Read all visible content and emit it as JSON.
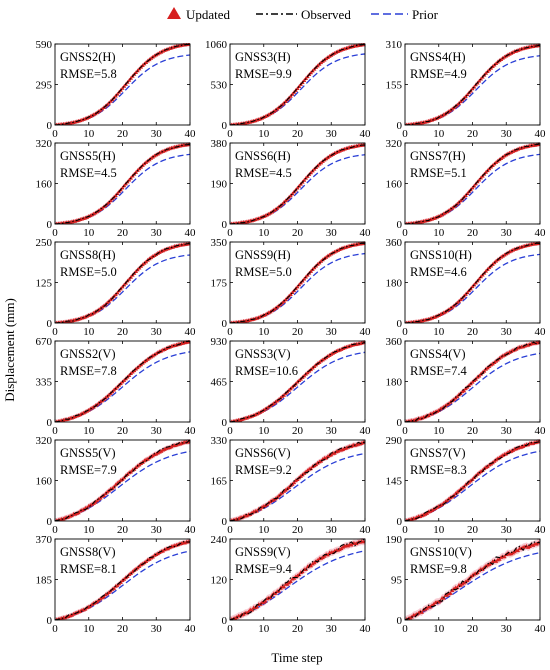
{
  "figure": {
    "ylabel": "Displacement (mm)",
    "xlabel": "Time step"
  },
  "legend": {
    "placement": "top",
    "items": [
      {
        "name": "Updated",
        "marker": "triangle",
        "color": "#d62020"
      },
      {
        "name": "Observed",
        "marker": "dashdot",
        "color": "#000000"
      },
      {
        "name": "Prior",
        "marker": "dashed",
        "color": "#2a3fd6"
      }
    ]
  },
  "colors": {
    "updated": "#d62020",
    "updated_band": "#f4b9c4",
    "observed": "#000000",
    "prior": "#2a3fd6"
  },
  "chart_data": [
    {
      "type": "line",
      "station": "GNSS2(H)",
      "rmse_label": "RMSE=5.8",
      "ylim": [
        0,
        590
      ],
      "yticks": [
        "0",
        "295",
        "590"
      ],
      "xlim": [
        0,
        40
      ],
      "xticks": [
        "0",
        "10",
        "20",
        "30",
        "40"
      ],
      "final_observed": 590,
      "final_prior": 510,
      "noise": 2,
      "sig": {
        "k": 0.19,
        "t0": 21
      }
    },
    {
      "type": "line",
      "station": "GNSS3(H)",
      "rmse_label": "RMSE=9.9",
      "ylim": [
        0,
        1060
      ],
      "yticks": [
        "0",
        "530",
        "1060"
      ],
      "xlim": [
        0,
        40
      ],
      "xticks": [
        "0",
        "10",
        "20",
        "30",
        "40"
      ],
      "final_observed": 1055,
      "final_prior": 930,
      "noise": 4,
      "sig": {
        "k": 0.19,
        "t0": 21
      }
    },
    {
      "type": "line",
      "station": "GNSS4(H)",
      "rmse_label": "RMSE=4.9",
      "ylim": [
        0,
        310
      ],
      "yticks": [
        "0",
        "155",
        "310"
      ],
      "xlim": [
        0,
        40
      ],
      "xticks": [
        "0",
        "10",
        "20",
        "30",
        "40"
      ],
      "final_observed": 305,
      "final_prior": 265,
      "noise": 2,
      "sig": {
        "k": 0.19,
        "t0": 21
      }
    },
    {
      "type": "line",
      "station": "GNSS5(H)",
      "rmse_label": "RMSE=4.5",
      "ylim": [
        0,
        320
      ],
      "yticks": [
        "0",
        "160",
        "320"
      ],
      "xlim": [
        0,
        40
      ],
      "xticks": [
        "0",
        "10",
        "20",
        "30",
        "40"
      ],
      "final_observed": 315,
      "final_prior": 275,
      "noise": 2,
      "sig": {
        "k": 0.19,
        "t0": 21
      }
    },
    {
      "type": "line",
      "station": "GNSS6(H)",
      "rmse_label": "RMSE=4.5",
      "ylim": [
        0,
        380
      ],
      "yticks": [
        "0",
        "190",
        "380"
      ],
      "xlim": [
        0,
        40
      ],
      "xticks": [
        "0",
        "10",
        "20",
        "30",
        "40"
      ],
      "final_observed": 372,
      "final_prior": 325,
      "noise": 2,
      "sig": {
        "k": 0.19,
        "t0": 21
      }
    },
    {
      "type": "line",
      "station": "GNSS7(H)",
      "rmse_label": "RMSE=5.1",
      "ylim": [
        0,
        320
      ],
      "yticks": [
        "0",
        "160",
        "320"
      ],
      "xlim": [
        0,
        40
      ],
      "xticks": [
        "0",
        "10",
        "20",
        "30",
        "40"
      ],
      "final_observed": 315,
      "final_prior": 275,
      "noise": 2,
      "sig": {
        "k": 0.19,
        "t0": 21
      }
    },
    {
      "type": "line",
      "station": "GNSS8(H)",
      "rmse_label": "RMSE=5.0",
      "ylim": [
        0,
        250
      ],
      "yticks": [
        "0",
        "125",
        "250"
      ],
      "xlim": [
        0,
        40
      ],
      "xticks": [
        "0",
        "10",
        "20",
        "30",
        "40"
      ],
      "final_observed": 245,
      "final_prior": 210,
      "noise": 2,
      "sig": {
        "k": 0.19,
        "t0": 21
      }
    },
    {
      "type": "line",
      "station": "GNSS9(H)",
      "rmse_label": "RMSE=5.0",
      "ylim": [
        0,
        350
      ],
      "yticks": [
        "0",
        "175",
        "350"
      ],
      "xlim": [
        0,
        40
      ],
      "xticks": [
        "0",
        "10",
        "20",
        "30",
        "40"
      ],
      "final_observed": 345,
      "final_prior": 300,
      "noise": 2,
      "sig": {
        "k": 0.19,
        "t0": 21
      }
    },
    {
      "type": "line",
      "station": "GNSS10(H)",
      "rmse_label": "RMSE=4.6",
      "ylim": [
        0,
        360
      ],
      "yticks": [
        "0",
        "180",
        "360"
      ],
      "xlim": [
        0,
        40
      ],
      "xticks": [
        "0",
        "10",
        "20",
        "30",
        "40"
      ],
      "final_observed": 355,
      "final_prior": 305,
      "noise": 2,
      "sig": {
        "k": 0.19,
        "t0": 21
      }
    },
    {
      "type": "line",
      "station": "GNSS2(V)",
      "rmse_label": "RMSE=7.8",
      "ylim": [
        0,
        670
      ],
      "yticks": [
        "0",
        "335",
        "670"
      ],
      "xlim": [
        0,
        40
      ],
      "xticks": [
        "0",
        "10",
        "20",
        "30",
        "40"
      ],
      "final_observed": 665,
      "final_prior": 580,
      "noise": 6,
      "sig": {
        "k": 0.15,
        "t0": 20
      }
    },
    {
      "type": "line",
      "station": "GNSS3(V)",
      "rmse_label": "RMSE=10.6",
      "ylim": [
        0,
        930
      ],
      "yticks": [
        "0",
        "465",
        "930"
      ],
      "xlim": [
        0,
        40
      ],
      "xticks": [
        "0",
        "10",
        "20",
        "30",
        "40"
      ],
      "final_observed": 915,
      "final_prior": 800,
      "noise": 8,
      "sig": {
        "k": 0.15,
        "t0": 20
      }
    },
    {
      "type": "line",
      "station": "GNSS4(V)",
      "rmse_label": "RMSE=7.4",
      "ylim": [
        0,
        360
      ],
      "yticks": [
        "0",
        "180",
        "360"
      ],
      "xlim": [
        0,
        40
      ],
      "xticks": [
        "0",
        "10",
        "20",
        "30",
        "40"
      ],
      "final_observed": 355,
      "final_prior": 305,
      "noise": 6,
      "sig": {
        "k": 0.15,
        "t0": 20
      }
    },
    {
      "type": "line",
      "station": "GNSS5(V)",
      "rmse_label": "RMSE=7.9",
      "ylim": [
        0,
        320
      ],
      "yticks": [
        "0",
        "160",
        "320"
      ],
      "xlim": [
        0,
        40
      ],
      "xticks": [
        "0",
        "10",
        "20",
        "30",
        "40"
      ],
      "final_observed": 315,
      "final_prior": 275,
      "noise": 6,
      "sig": {
        "k": 0.13,
        "t0": 19
      }
    },
    {
      "type": "line",
      "station": "GNSS6(V)",
      "rmse_label": "RMSE=9.2",
      "ylim": [
        0,
        330
      ],
      "yticks": [
        "0",
        "165",
        "330"
      ],
      "xlim": [
        0,
        40
      ],
      "xticks": [
        "0",
        "10",
        "20",
        "30",
        "40"
      ],
      "final_observed": 320,
      "final_prior": 275,
      "noise": 7,
      "sig": {
        "k": 0.13,
        "t0": 19
      }
    },
    {
      "type": "line",
      "station": "GNSS7(V)",
      "rmse_label": "RMSE=8.3",
      "ylim": [
        0,
        290
      ],
      "yticks": [
        "0",
        "145",
        "290"
      ],
      "xlim": [
        0,
        40
      ],
      "xticks": [
        "0",
        "10",
        "20",
        "30",
        "40"
      ],
      "final_observed": 285,
      "final_prior": 250,
      "noise": 5,
      "sig": {
        "k": 0.13,
        "t0": 19
      }
    },
    {
      "type": "line",
      "station": "GNSS8(V)",
      "rmse_label": "RMSE=8.1",
      "ylim": [
        0,
        370
      ],
      "yticks": [
        "0",
        "185",
        "370"
      ],
      "xlim": [
        0,
        40
      ],
      "xticks": [
        "0",
        "10",
        "20",
        "30",
        "40"
      ],
      "final_observed": 360,
      "final_prior": 315,
      "noise": 6,
      "sig": {
        "k": 0.13,
        "t0": 20
      }
    },
    {
      "type": "line",
      "station": "GNSS9(V)",
      "rmse_label": "RMSE=9.4",
      "ylim": [
        0,
        240
      ],
      "yticks": [
        "0",
        "120",
        "240"
      ],
      "xlim": [
        0,
        40
      ],
      "xticks": [
        "0",
        "10",
        "20",
        "30",
        "40"
      ],
      "final_observed": 235,
      "final_prior": 205,
      "noise": 9,
      "sig": {
        "k": 0.11,
        "t0": 17
      }
    },
    {
      "type": "line",
      "station": "GNSS10(V)",
      "rmse_label": "RMSE=9.8",
      "ylim": [
        0,
        190
      ],
      "yticks": [
        "0",
        "95",
        "190"
      ],
      "xlim": [
        0,
        40
      ],
      "xticks": [
        "0",
        "10",
        "20",
        "30",
        "40"
      ],
      "final_observed": 180,
      "final_prior": 158,
      "noise": 8,
      "sig": {
        "k": 0.1,
        "t0": 16
      }
    }
  ]
}
